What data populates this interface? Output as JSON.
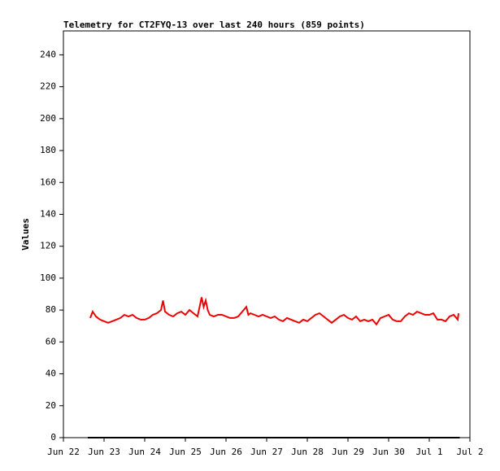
{
  "chart_data": {
    "type": "line",
    "title": "Telemetry for CT2FYQ-13 over last 240 hours (859 points)",
    "ylabel": "Values",
    "xlim": [
      0,
      10
    ],
    "ylim": [
      0,
      255
    ],
    "xticks": [
      {
        "value": 0,
        "label": "Jun 22"
      },
      {
        "value": 1,
        "label": "Jun 23"
      },
      {
        "value": 2,
        "label": "Jun 24"
      },
      {
        "value": 3,
        "label": "Jun 25"
      },
      {
        "value": 4,
        "label": "Jun 26"
      },
      {
        "value": 5,
        "label": "Jun 27"
      },
      {
        "value": 6,
        "label": "Jun 28"
      },
      {
        "value": 7,
        "label": "Jun 29"
      },
      {
        "value": 8,
        "label": "Jun 30"
      },
      {
        "value": 9,
        "label": "Jul 1"
      },
      {
        "value": 10,
        "label": "Jul 2"
      }
    ],
    "yticks": [
      0,
      20,
      40,
      60,
      80,
      100,
      120,
      140,
      160,
      180,
      200,
      220,
      240
    ],
    "series": [
      {
        "color": "#ee0000",
        "x": [
          0.66,
          0.72,
          0.8,
          0.9,
          1.0,
          1.1,
          1.2,
          1.3,
          1.4,
          1.5,
          1.6,
          1.7,
          1.8,
          1.9,
          2.0,
          2.1,
          2.2,
          2.3,
          2.4,
          2.45,
          2.5,
          2.6,
          2.7,
          2.8,
          2.9,
          3.0,
          3.1,
          3.2,
          3.3,
          3.4,
          3.45,
          3.5,
          3.55,
          3.6,
          3.7,
          3.8,
          3.9,
          4.0,
          4.1,
          4.2,
          4.3,
          4.4,
          4.5,
          4.55,
          4.6,
          4.7,
          4.8,
          4.9,
          5.0,
          5.1,
          5.2,
          5.3,
          5.4,
          5.5,
          5.6,
          5.7,
          5.8,
          5.9,
          6.0,
          6.1,
          6.2,
          6.3,
          6.4,
          6.5,
          6.6,
          6.7,
          6.8,
          6.9,
          7.0,
          7.1,
          7.2,
          7.3,
          7.4,
          7.5,
          7.6,
          7.7,
          7.8,
          7.9,
          8.0,
          8.1,
          8.2,
          8.3,
          8.4,
          8.5,
          8.6,
          8.7,
          8.8,
          8.9,
          9.0,
          9.1,
          9.2,
          9.3,
          9.4,
          9.5,
          9.6,
          9.7,
          9.72
        ],
        "values": [
          75,
          79,
          76,
          74,
          73,
          72,
          73,
          74,
          75,
          77,
          76,
          77,
          75,
          74,
          74,
          75,
          77,
          78,
          80,
          86,
          79,
          77,
          76,
          78,
          79,
          77,
          80,
          78,
          76,
          88,
          82,
          86,
          80,
          77,
          76,
          77,
          77,
          76,
          75,
          75,
          76,
          79,
          82,
          77,
          78,
          77,
          76,
          77,
          76,
          75,
          76,
          74,
          73,
          75,
          74,
          73,
          72,
          74,
          73,
          75,
          77,
          78,
          76,
          74,
          72,
          74,
          76,
          77,
          75,
          74,
          76,
          73,
          74,
          73,
          74,
          71,
          75,
          76,
          77,
          74,
          73,
          73,
          76,
          78,
          77,
          79,
          78,
          77,
          77,
          78,
          74,
          74,
          73,
          76,
          77,
          74,
          78
        ]
      },
      {
        "color": "#000000",
        "x": [
          0.6,
          9.75
        ],
        "values": [
          0,
          0
        ]
      }
    ]
  }
}
